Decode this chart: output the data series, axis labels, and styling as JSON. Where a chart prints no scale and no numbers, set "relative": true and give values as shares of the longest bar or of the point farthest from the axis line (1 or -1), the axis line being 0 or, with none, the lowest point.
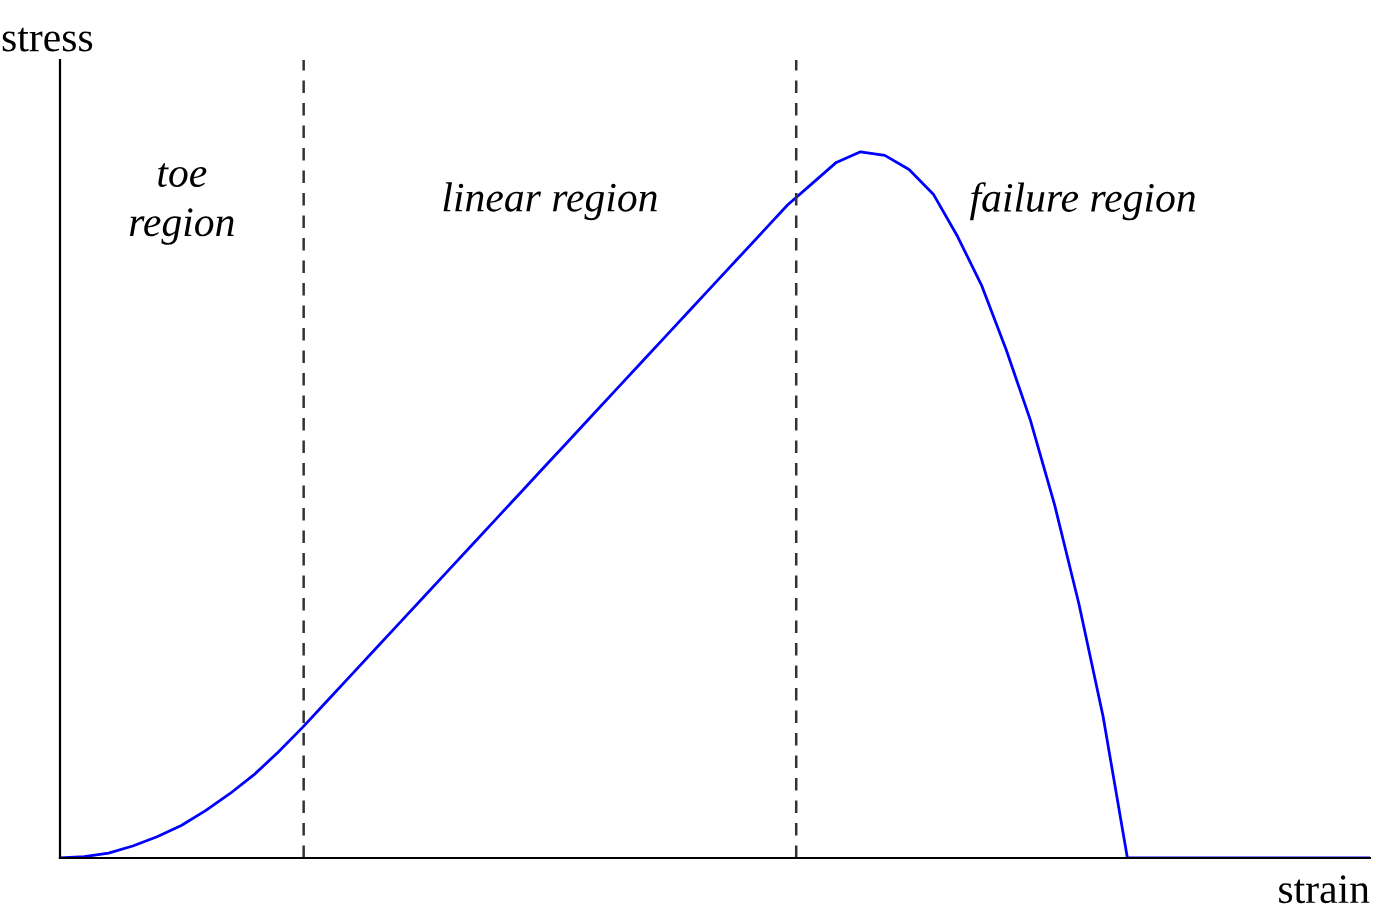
{
  "chart_data": {
    "type": "line",
    "relative": true,
    "xlabel": "strain",
    "ylabel": "stress",
    "categories": [
      null,
      null,
      null,
      null,
      null,
      null,
      null,
      null,
      null,
      null,
      null,
      null,
      null,
      null,
      null,
      null,
      null,
      null,
      null,
      null,
      null,
      null,
      null,
      null,
      null,
      null,
      null,
      null,
      null,
      null,
      null,
      null,
      null,
      null,
      null,
      null,
      null,
      null,
      null,
      null,
      null,
      null,
      null,
      null,
      null,
      null,
      null,
      null,
      null,
      null,
      null,
      null,
      null,
      null,
      null
    ],
    "series": [
      {
        "color": "#0000ff",
        "values": [
          0,
          0.002,
          0.007,
          0.017,
          0.03,
          0.046,
          0.067,
          0.091,
          0.118,
          0.15,
          0.185,
          0.222,
          0.259,
          0.296,
          0.333,
          0.37,
          0.407,
          0.444,
          0.481,
          0.518,
          0.555,
          0.592,
          0.629,
          0.666,
          0.703,
          0.74,
          0.777,
          0.814,
          0.851,
          0.888,
          0.925,
          0.955,
          0.985,
          1,
          0.995,
          0.975,
          0.94,
          0.88,
          0.81,
          0.72,
          0.62,
          0.5,
          0.36,
          0.2,
          0,
          0,
          0,
          0,
          0,
          0,
          0,
          0,
          0,
          0,
          0
        ]
      }
    ],
    "annotations": [
      "toe\nregion",
      "linear region",
      "failure region"
    ]
  }
}
